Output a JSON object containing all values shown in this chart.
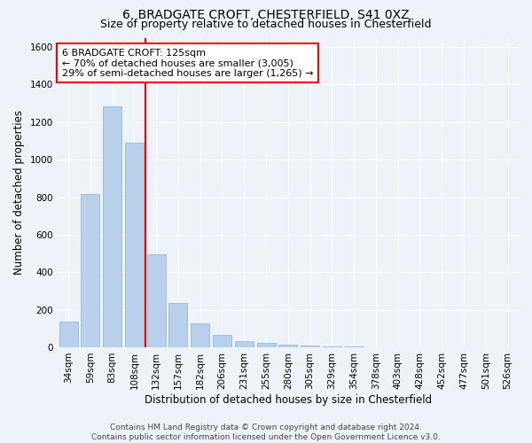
{
  "title1": "6, BRADGATE CROFT, CHESTERFIELD, S41 0XZ",
  "title2": "Size of property relative to detached houses in Chesterfield",
  "xlabel": "Distribution of detached houses by size in Chesterfield",
  "ylabel": "Number of detached properties",
  "footer1": "Contains HM Land Registry data © Crown copyright and database right 2024.",
  "footer2": "Contains public sector information licensed under the Open Government Licence v3.0.",
  "annotation_line1": "6 BRADGATE CROFT: 125sqm",
  "annotation_line2": "← 70% of detached houses are smaller (3,005)",
  "annotation_line3": "29% of semi-detached houses are larger (1,265) →",
  "bar_color": "#b8d0ea",
  "bar_edge_color": "#8ab0d0",
  "categories": [
    "34sqm",
    "59sqm",
    "83sqm",
    "108sqm",
    "132sqm",
    "157sqm",
    "182sqm",
    "206sqm",
    "231sqm",
    "255sqm",
    "280sqm",
    "305sqm",
    "329sqm",
    "354sqm",
    "378sqm",
    "403sqm",
    "428sqm",
    "452sqm",
    "477sqm",
    "501sqm",
    "526sqm"
  ],
  "values": [
    135,
    815,
    1285,
    1090,
    495,
    235,
    125,
    65,
    35,
    25,
    15,
    10,
    5,
    5,
    0,
    0,
    0,
    0,
    0,
    0,
    0
  ],
  "red_line_after_bin": 4,
  "ylim": [
    0,
    1650
  ],
  "yticks": [
    0,
    200,
    400,
    600,
    800,
    1000,
    1200,
    1400,
    1600
  ],
  "background_color": "#eef2f9",
  "grid_color": "#ffffff",
  "title1_fontsize": 10,
  "title2_fontsize": 9,
  "xlabel_fontsize": 8.5,
  "ylabel_fontsize": 8.5,
  "tick_fontsize": 7.5,
  "annotation_fontsize": 8
}
